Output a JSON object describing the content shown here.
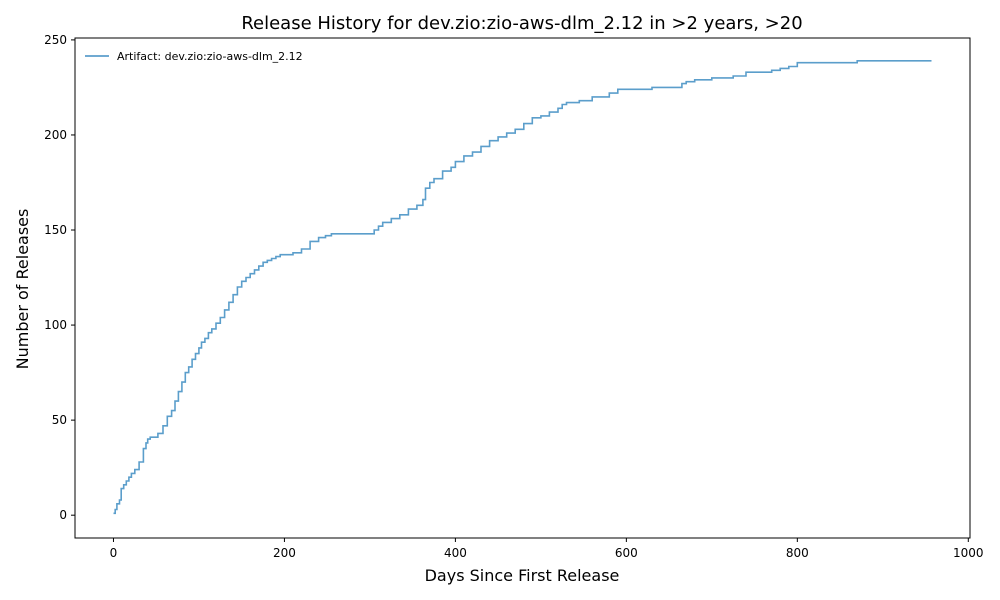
{
  "chart_data": {
    "type": "line",
    "title": "Release History for dev.zio:zio-aws-dlm_2.12 in >2 years, >20",
    "xlabel": "Days Since First Release",
    "ylabel": "Number of Releases",
    "xlim": [
      -45,
      1002
    ],
    "ylim": [
      -12,
      251
    ],
    "xticks": [
      0,
      200,
      400,
      600,
      800,
      1000
    ],
    "yticks": [
      0,
      50,
      100,
      150,
      200,
      250
    ],
    "grid": false,
    "legend_position": "top-left",
    "series": [
      {
        "name": "Artifact: dev.zio:zio-aws-dlm_2.12",
        "color": "#5b9ecb",
        "step": true,
        "x": [
          0,
          2,
          4,
          7,
          9,
          12,
          15,
          18,
          21,
          25,
          30,
          35,
          38,
          40,
          43,
          47,
          52,
          58,
          63,
          68,
          72,
          76,
          80,
          84,
          88,
          92,
          96,
          100,
          103,
          107,
          111,
          115,
          120,
          125,
          130,
          135,
          140,
          145,
          150,
          155,
          160,
          165,
          170,
          175,
          180,
          185,
          190,
          195,
          200,
          210,
          220,
          230,
          240,
          248,
          255,
          265,
          280,
          300,
          305,
          310,
          315,
          325,
          335,
          345,
          355,
          362,
          365,
          370,
          375,
          385,
          395,
          400,
          410,
          420,
          430,
          440,
          450,
          460,
          470,
          480,
          490,
          500,
          510,
          520,
          525,
          530,
          545,
          560,
          580,
          590,
          630,
          665,
          670,
          680,
          700,
          725,
          740,
          770,
          780,
          790,
          800,
          870,
          957
        ],
        "y": [
          1,
          3,
          6,
          8,
          14,
          16,
          18,
          20,
          22,
          24,
          28,
          35,
          38,
          40,
          41,
          41,
          43,
          47,
          52,
          55,
          60,
          65,
          70,
          75,
          78,
          82,
          85,
          88,
          91,
          93,
          96,
          98,
          101,
          104,
          108,
          112,
          116,
          120,
          123,
          125,
          127,
          129,
          131,
          133,
          134,
          135,
          136,
          137,
          137,
          138,
          140,
          144,
          146,
          147,
          148,
          148,
          148,
          148,
          150,
          152,
          154,
          156,
          158,
          161,
          163,
          166,
          172,
          175,
          177,
          181,
          183,
          186,
          189,
          191,
          194,
          197,
          199,
          201,
          203,
          206,
          209,
          210,
          212,
          214,
          216,
          217,
          218,
          220,
          222,
          224,
          225,
          227,
          228,
          229,
          230,
          231,
          233,
          234,
          235,
          236,
          238,
          239,
          239
        ]
      }
    ]
  }
}
